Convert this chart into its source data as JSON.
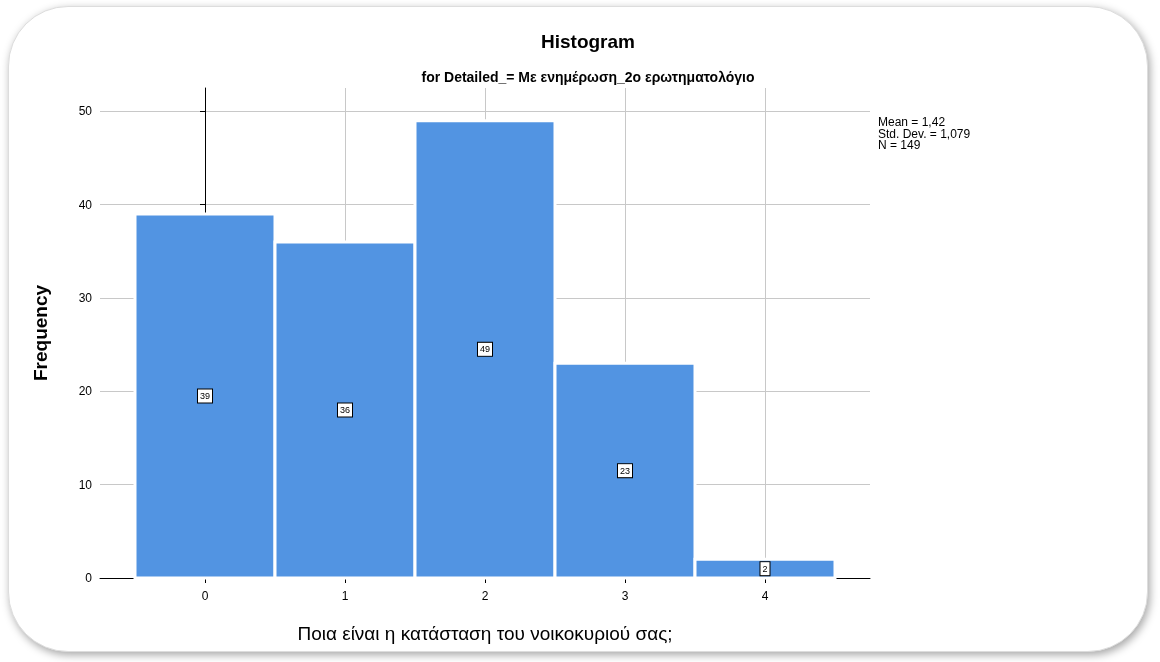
{
  "chart_data": {
    "type": "histogram",
    "title": "Histogram",
    "subtitle": "for Detailed_= Με ενημέρωση_2ο ερωτηματολόγιο",
    "xlabel": "Ποια είναι η κατάσταση του νοικοκυριού σας;",
    "ylabel": "Frequency",
    "bins": [
      -0.5,
      0.5,
      1.5,
      2.5,
      3.5,
      4.5
    ],
    "values": [
      39,
      36,
      49,
      23,
      2
    ],
    "color": "#5294e2",
    "xlim": [
      -0.75,
      4.75
    ],
    "xticks": [
      0,
      1,
      2,
      3,
      4
    ],
    "ylim": [
      0,
      52.5
    ],
    "yticks": [
      0,
      10,
      20,
      30,
      40,
      50
    ],
    "grid": true,
    "data_labels": true,
    "annotations": [
      "Mean = 1,42",
      "Std. Dev. = 1,079",
      "N = 149"
    ]
  }
}
